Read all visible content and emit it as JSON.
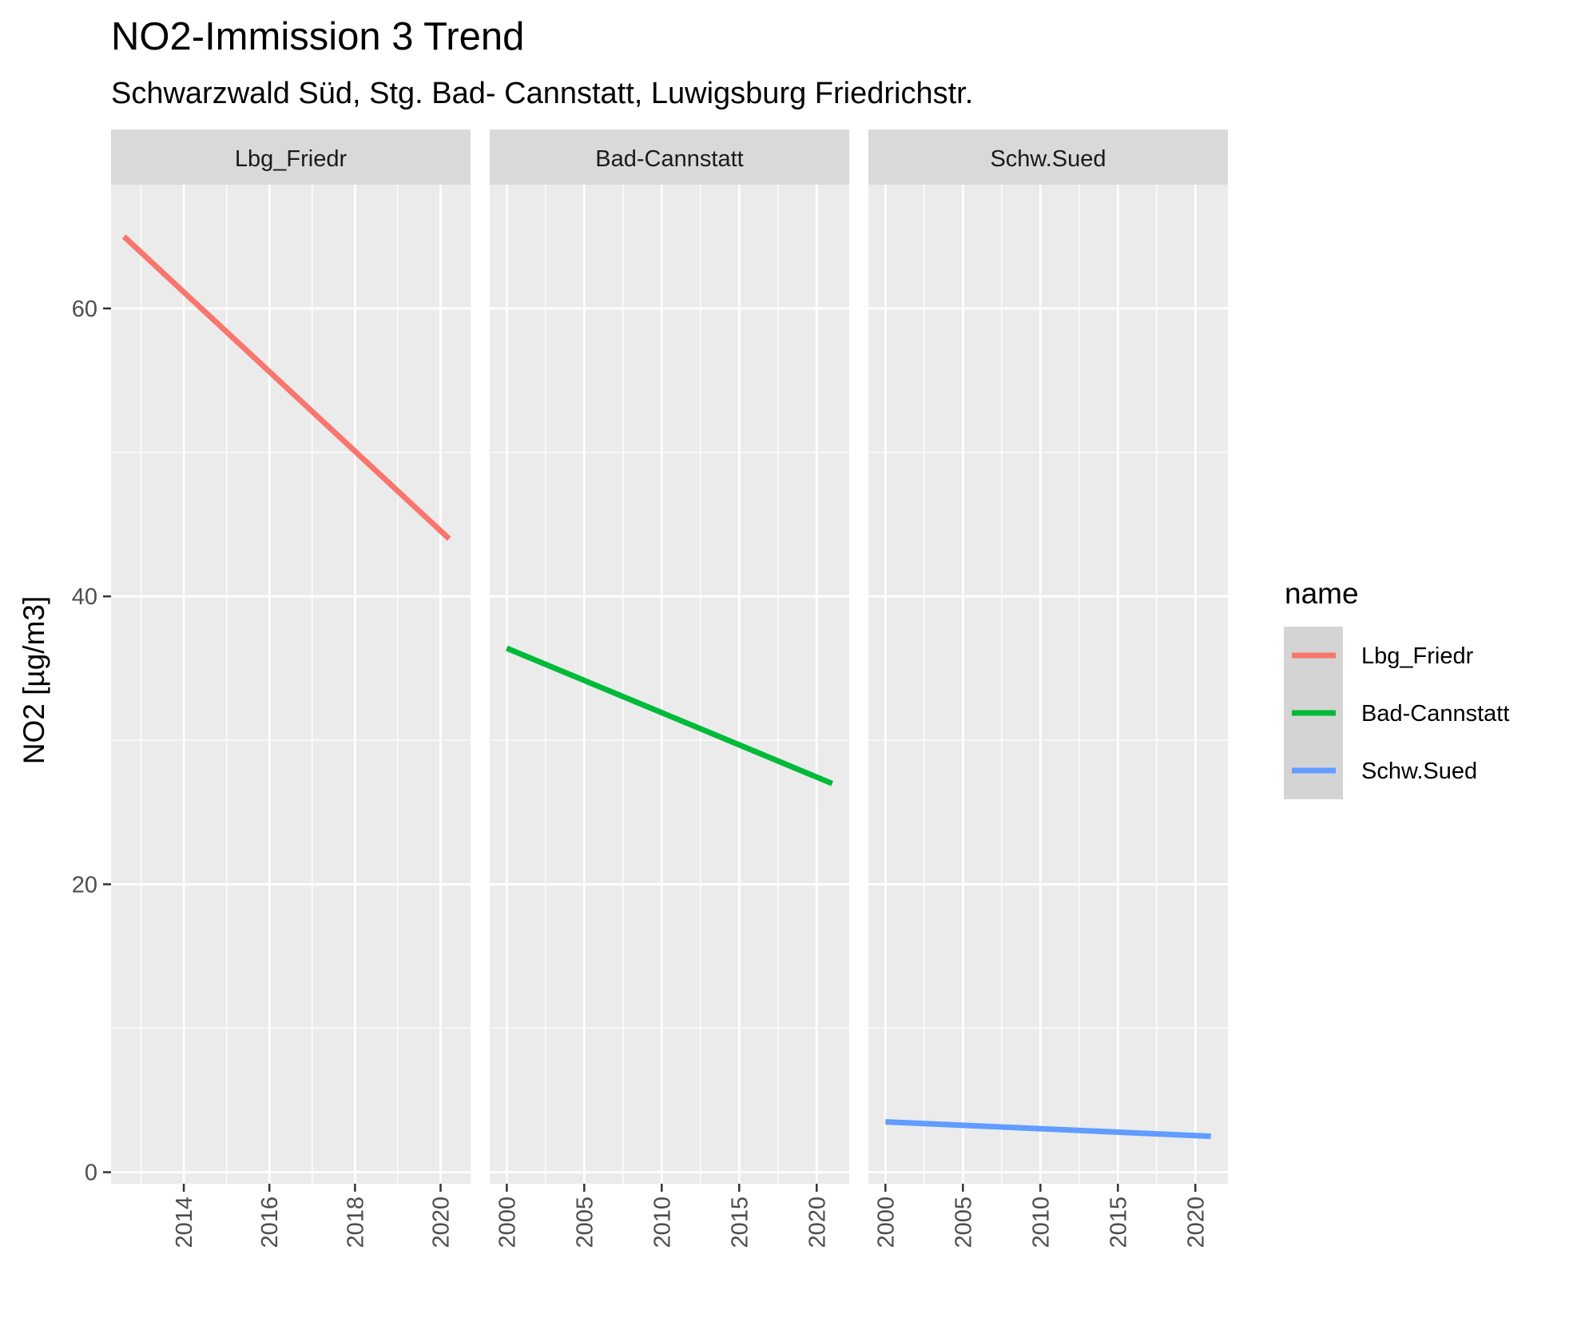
{
  "chart_data": {
    "type": "line",
    "title": "NO2-Immission 3 Trend",
    "subtitle": "Schwarzwald Süd, Stg. Bad- Cannstatt, Luwigsburg Friedrichstr.",
    "ylabel": "NO2 [µg/m3]",
    "xlabel": "",
    "ylim": [
      -0.8,
      68.6
    ],
    "y_ticks": [
      0,
      20,
      40,
      60
    ],
    "grid": true,
    "legend": {
      "title": "name",
      "placement": "right",
      "entries": [
        "Lbg_Friedr",
        "Bad-Cannstatt",
        "Schw.Sued"
      ]
    },
    "facets": [
      {
        "name": "Lbg_Friedr",
        "color": "#F8766D",
        "xlim": [
          2012.3,
          2020.7
        ],
        "x_ticks": [
          2014,
          2016,
          2018,
          2020
        ],
        "x": [
          2012.6,
          2020.2
        ],
        "y": [
          65.0,
          44.0
        ]
      },
      {
        "name": "Bad-Cannstatt",
        "color": "#00BA38",
        "xlim": [
          1998.9,
          2022.1
        ],
        "x_ticks": [
          2000,
          2005,
          2010,
          2015,
          2020
        ],
        "x": [
          2000,
          2021
        ],
        "y": [
          36.4,
          27.0
        ]
      },
      {
        "name": "Schw.Sued",
        "color": "#619CFF",
        "xlim": [
          1998.9,
          2022.1
        ],
        "x_ticks": [
          2000,
          2005,
          2010,
          2015,
          2020
        ],
        "x": [
          2000,
          2021
        ],
        "y": [
          3.5,
          2.5
        ]
      }
    ]
  }
}
